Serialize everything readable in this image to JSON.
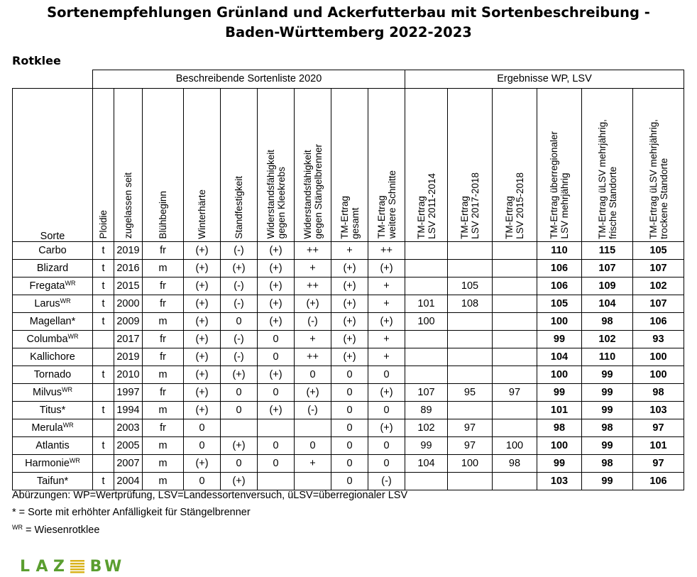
{
  "title_line1": "Sortenempfehlungen Grünland und Ackerfutterbau mit Sortenbeschreibung -",
  "title_line2": "Baden-Württemberg 2022-2023",
  "subtitle": "Rotklee",
  "group_headers": {
    "description": "Beschreibende Sortenliste 2020",
    "results": "Ergebnisse WP, LSV"
  },
  "columns": {
    "sorte": "Sorte",
    "ploidie": "Ploidie",
    "zugelassen": "zugelassen seit",
    "bluehbeginn": "Blühbeginn",
    "winterhaerte": "Winterhärte",
    "standfestigkeit": "Standfestigkeit",
    "kleekrebs_1": "Widerstandsfähigkeit",
    "kleekrebs_2": "gegen Kleekrebs",
    "staengel_1": "Widerstandsfähigkeit",
    "staengel_2": "gegen Stängelbrenner",
    "tm_gesamt_1": "TM-Ertrag",
    "tm_gesamt_2": "gesamt",
    "tm_weitere_1": "TM-Ertrag",
    "tm_weitere_2": "weitere Schnitte",
    "lsv1_1": "TM-Ertrag",
    "lsv1_2": "LSV 2011-2014",
    "lsv2_1": "TM-Ertrag",
    "lsv2_2": "LSV 2017-2018",
    "lsv3_1": "TM-Ertrag",
    "lsv3_2": "LSV 2015-2018",
    "ue_1": "TM-Ertrag überregionaler",
    "ue_2": "LSV mehrjährig",
    "frisch_1": "TM-Ertrag üLSV mehrjährig,",
    "frisch_2": "frische Standorte",
    "trocken_1": "TM-Ertrag üLSV mehrjährig,",
    "trocken_2": "trockene Standorte"
  },
  "rows": [
    {
      "name": "Carbo",
      "sup": "",
      "ploidie": "t",
      "zug": "2019",
      "blueh": "fr",
      "winter": "(+)",
      "stand": "(-)",
      "klee": "(+)",
      "staengel": "++",
      "tmg": "+",
      "tmw": "++",
      "lsv1": "",
      "lsv2": "",
      "lsv3": "",
      "ue": "110",
      "frisch": "115",
      "trocken": "105"
    },
    {
      "name": "Blizard",
      "sup": "",
      "ploidie": "t",
      "zug": "2016",
      "blueh": "m",
      "winter": "(+)",
      "stand": "(+)",
      "klee": "(+)",
      "staengel": "+",
      "tmg": "(+)",
      "tmw": "(+)",
      "lsv1": "",
      "lsv2": "",
      "lsv3": "",
      "ue": "106",
      "frisch": "107",
      "trocken": "107"
    },
    {
      "name": "Fregata",
      "sup": "WR",
      "ploidie": "t",
      "zug": "2015",
      "blueh": "fr",
      "winter": "(+)",
      "stand": "(-)",
      "klee": "(+)",
      "staengel": "++",
      "tmg": "(+)",
      "tmw": "+",
      "lsv1": "",
      "lsv2": "105",
      "lsv3": "",
      "ue": "106",
      "frisch": "109",
      "trocken": "102"
    },
    {
      "name": "Larus",
      "sup": "WR",
      "ploidie": "t",
      "zug": "2000",
      "blueh": "fr",
      "winter": "(+)",
      "stand": "(-)",
      "klee": "(+)",
      "staengel": "(+)",
      "tmg": "(+)",
      "tmw": "+",
      "lsv1": "101",
      "lsv2": "108",
      "lsv3": "",
      "ue": "105",
      "frisch": "104",
      "trocken": "107"
    },
    {
      "name": "Magellan*",
      "sup": "",
      "ploidie": "t",
      "zug": "2009",
      "blueh": "m",
      "winter": "(+)",
      "stand": "0",
      "klee": "(+)",
      "staengel": "(-)",
      "tmg": "(+)",
      "tmw": "(+)",
      "lsv1": "100",
      "lsv2": "",
      "lsv3": "",
      "ue": "100",
      "frisch": "98",
      "trocken": "106"
    },
    {
      "name": "Columba",
      "sup": "WR",
      "ploidie": "",
      "zug": "2017",
      "blueh": "fr",
      "winter": "(+)",
      "stand": "(-)",
      "klee": "0",
      "staengel": "+",
      "tmg": "(+)",
      "tmw": "+",
      "lsv1": "",
      "lsv2": "",
      "lsv3": "",
      "ue": "99",
      "frisch": "102",
      "trocken": "93"
    },
    {
      "name": "Kallichore",
      "sup": "",
      "ploidie": "",
      "zug": "2019",
      "blueh": "fr",
      "winter": "(+)",
      "stand": "(-)",
      "klee": "0",
      "staengel": "++",
      "tmg": "(+)",
      "tmw": "+",
      "lsv1": "",
      "lsv2": "",
      "lsv3": "",
      "ue": "104",
      "frisch": "110",
      "trocken": "100"
    },
    {
      "name": "Tornado",
      "sup": "",
      "ploidie": "t",
      "zug": "2010",
      "blueh": "m",
      "winter": "(+)",
      "stand": "(+)",
      "klee": "(+)",
      "staengel": "0",
      "tmg": "0",
      "tmw": "0",
      "lsv1": "",
      "lsv2": "",
      "lsv3": "",
      "ue": "100",
      "frisch": "99",
      "trocken": "100"
    },
    {
      "name": "Milvus",
      "sup": "WR",
      "ploidie": "",
      "zug": "1997",
      "blueh": "fr",
      "winter": "(+)",
      "stand": "0",
      "klee": "0",
      "staengel": "(+)",
      "tmg": "0",
      "tmw": "(+)",
      "lsv1": "107",
      "lsv2": "95",
      "lsv3": "97",
      "ue": "99",
      "frisch": "99",
      "trocken": "98"
    },
    {
      "name": "Titus*",
      "sup": "",
      "ploidie": "t",
      "zug": "1994",
      "blueh": "m",
      "winter": "(+)",
      "stand": "0",
      "klee": "(+)",
      "staengel": "(-)",
      "tmg": "0",
      "tmw": "0",
      "lsv1": "89",
      "lsv2": "",
      "lsv3": "",
      "ue": "101",
      "frisch": "99",
      "trocken": "103"
    },
    {
      "name": "Merula",
      "sup": "WR",
      "ploidie": "",
      "zug": "2003",
      "blueh": "fr",
      "winter": "0",
      "stand": "",
      "klee": "",
      "staengel": "",
      "tmg": "0",
      "tmw": "(+)",
      "lsv1": "102",
      "lsv2": "97",
      "lsv3": "",
      "ue": "98",
      "frisch": "98",
      "trocken": "97"
    },
    {
      "name": "Atlantis",
      "sup": "",
      "ploidie": "t",
      "zug": "2005",
      "blueh": "m",
      "winter": "0",
      "stand": "(+)",
      "klee": "0",
      "staengel": "0",
      "tmg": "0",
      "tmw": "0",
      "lsv1": "99",
      "lsv2": "97",
      "lsv3": "100",
      "ue": "100",
      "frisch": "99",
      "trocken": "101"
    },
    {
      "name": "Harmonie",
      "sup": "WR",
      "ploidie": "",
      "zug": "2007",
      "blueh": "m",
      "winter": "(+)",
      "stand": "0",
      "klee": "0",
      "staengel": "+",
      "tmg": "0",
      "tmw": "0",
      "lsv1": "104",
      "lsv2": "100",
      "lsv3": "98",
      "ue": "99",
      "frisch": "98",
      "trocken": "97"
    },
    {
      "name": "Taifun*",
      "sup": "",
      "ploidie": "t",
      "zug": "2004",
      "blueh": "m",
      "winter": "0",
      "stand": "(+)",
      "klee": "",
      "staengel": "",
      "tmg": "0",
      "tmw": "(-)",
      "lsv1": "",
      "lsv2": "",
      "lsv3": "",
      "ue": "103",
      "frisch": "99",
      "trocken": "106"
    }
  ],
  "footnotes": {
    "abbrev": "Abürzungen: WP=Wertprüfung, LSV=Landessortenversuch, üLSV=überregionaler LSV",
    "star": "* = Sorte mit erhöhter Anfälligkeit für Stängelbrenner",
    "wr_sup": "WR",
    "wr_text": " = Wiesenrotklee"
  },
  "logo": {
    "left": "LAZ",
    "right": "BW",
    "color": "#5a9e2f",
    "accent": "#d9b31c"
  }
}
